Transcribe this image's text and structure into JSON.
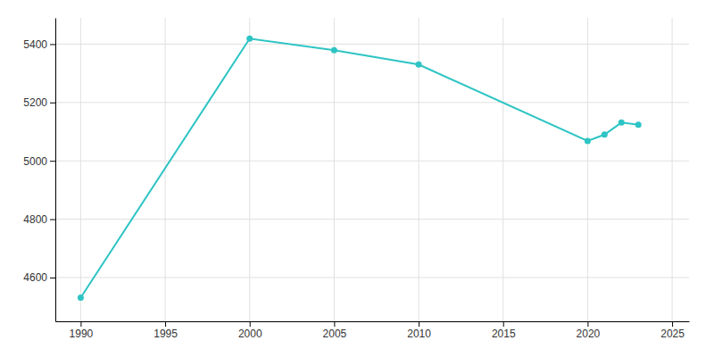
{
  "chart_data": {
    "type": "line",
    "x": [
      1990,
      2000,
      2005,
      2010,
      2020,
      2021,
      2022,
      2023
    ],
    "values": [
      4531,
      5419,
      5379,
      5330,
      5068,
      5090,
      5131,
      5124
    ],
    "color": "#2ec4c4",
    "marker": "circle",
    "xlim": [
      1988.5,
      2026
    ],
    "ylim": [
      4450,
      5490
    ],
    "xticks": [
      1990,
      1995,
      2000,
      2005,
      2010,
      2015,
      2020,
      2025
    ],
    "yticks": [
      4600,
      4800,
      5000,
      5200,
      5400
    ],
    "grid": true
  }
}
